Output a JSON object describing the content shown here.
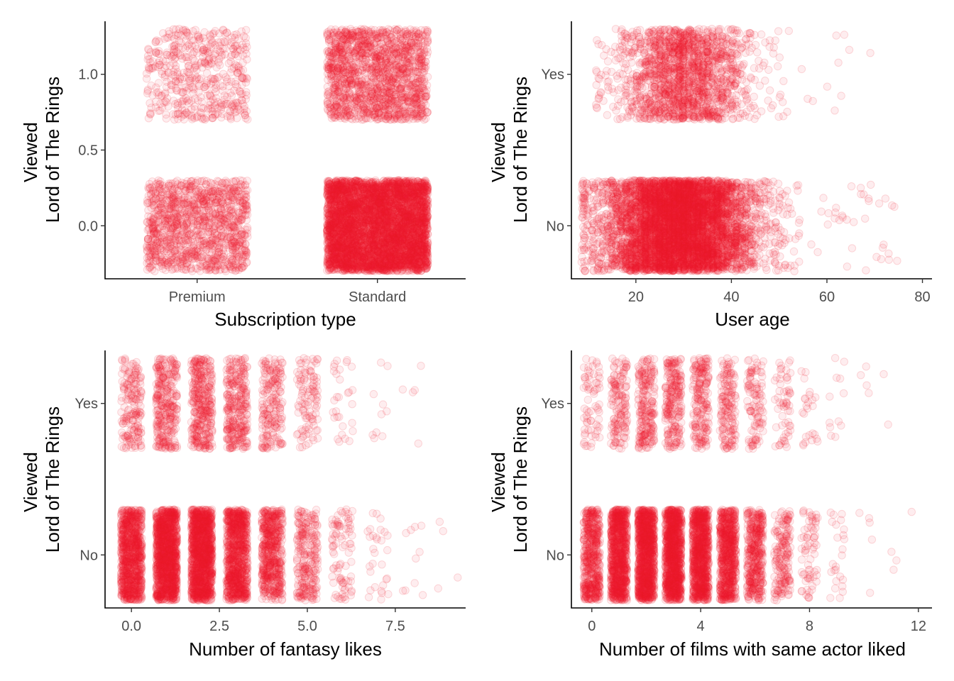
{
  "style": {
    "point_color": "#ee1c2e",
    "point_opacity": 0.08,
    "point_stroke_opacity": 0.16
  },
  "chart_data": [
    {
      "type": "scatter",
      "jitter": true,
      "xlabel": "Subscription type",
      "ylabel": [
        "Viewed",
        "Lord of The Rings"
      ],
      "x_kind": "categorical",
      "categories": [
        "Premium",
        "Standard"
      ],
      "ylim": [
        -0.35,
        1.35
      ],
      "yticks": [
        0.0,
        0.5,
        1.0
      ],
      "ytick_labels": [
        "0.0",
        "0.5",
        "1.0"
      ],
      "groups": [
        {
          "x": "Premium",
          "y": 1,
          "count": 500
        },
        {
          "x": "Standard",
          "y": 1,
          "count": 1500
        },
        {
          "x": "Premium",
          "y": 0,
          "count": 1200
        },
        {
          "x": "Standard",
          "y": 0,
          "count": 5000
        }
      ]
    },
    {
      "type": "scatter",
      "jitter": true,
      "xlabel": "User age",
      "ylabel": [
        "Viewed",
        "Lord of The Rings"
      ],
      "x_kind": "numeric",
      "xlim": [
        6.5,
        82
      ],
      "xticks": [
        20,
        40,
        60,
        80
      ],
      "xtick_labels": [
        "20",
        "40",
        "60",
        "80"
      ],
      "yticks": [
        0,
        1
      ],
      "ytick_labels": [
        "No",
        "Yes"
      ],
      "groups": [
        {
          "y": "Yes",
          "count": 1700,
          "x_mean": 30,
          "x_sd": 7,
          "x_min": 12,
          "x_max": 79
        },
        {
          "y": "No",
          "count": 6000,
          "x_mean": 29,
          "x_sd": 8,
          "x_min": 9,
          "x_max": 75
        }
      ]
    },
    {
      "type": "scatter",
      "jitter": true,
      "xlabel": "Number of fantasy likes",
      "ylabel": [
        "Viewed",
        "Lord of The Rings"
      ],
      "x_kind": "discrete",
      "xlim": [
        -0.75,
        9.5
      ],
      "xticks": [
        0.0,
        2.5,
        5.0,
        7.5
      ],
      "xtick_labels": [
        "0.0",
        "2.5",
        "5.0",
        "7.5"
      ],
      "yticks": [
        0,
        1
      ],
      "ytick_labels": [
        "No",
        "Yes"
      ],
      "x_values": [
        0,
        1,
        2,
        3,
        4,
        5,
        6,
        7,
        8,
        9
      ],
      "counts_yes": [
        180,
        300,
        350,
        300,
        200,
        110,
        30,
        10,
        5,
        0
      ],
      "counts_no": [
        900,
        1300,
        1300,
        900,
        550,
        250,
        90,
        30,
        10,
        4
      ]
    },
    {
      "type": "scatter",
      "jitter": true,
      "xlabel": "Number of films with same actor liked",
      "ylabel": [
        "Viewed",
        "Lord of The Rings"
      ],
      "x_kind": "discrete",
      "xlim": [
        -0.75,
        12.5
      ],
      "xticks": [
        0,
        4,
        8,
        12
      ],
      "xtick_labels": [
        "0",
        "4",
        "8",
        "12"
      ],
      "yticks": [
        0,
        1
      ],
      "ytick_labels": [
        "No",
        "Yes"
      ],
      "x_values": [
        0,
        1,
        2,
        3,
        4,
        5,
        6,
        7,
        8,
        9,
        10,
        11,
        12
      ],
      "counts_yes": [
        70,
        150,
        220,
        230,
        200,
        160,
        110,
        60,
        25,
        12,
        4,
        2,
        0
      ],
      "counts_no": [
        500,
        900,
        1100,
        1100,
        950,
        700,
        400,
        180,
        70,
        25,
        5,
        3,
        1
      ]
    }
  ]
}
